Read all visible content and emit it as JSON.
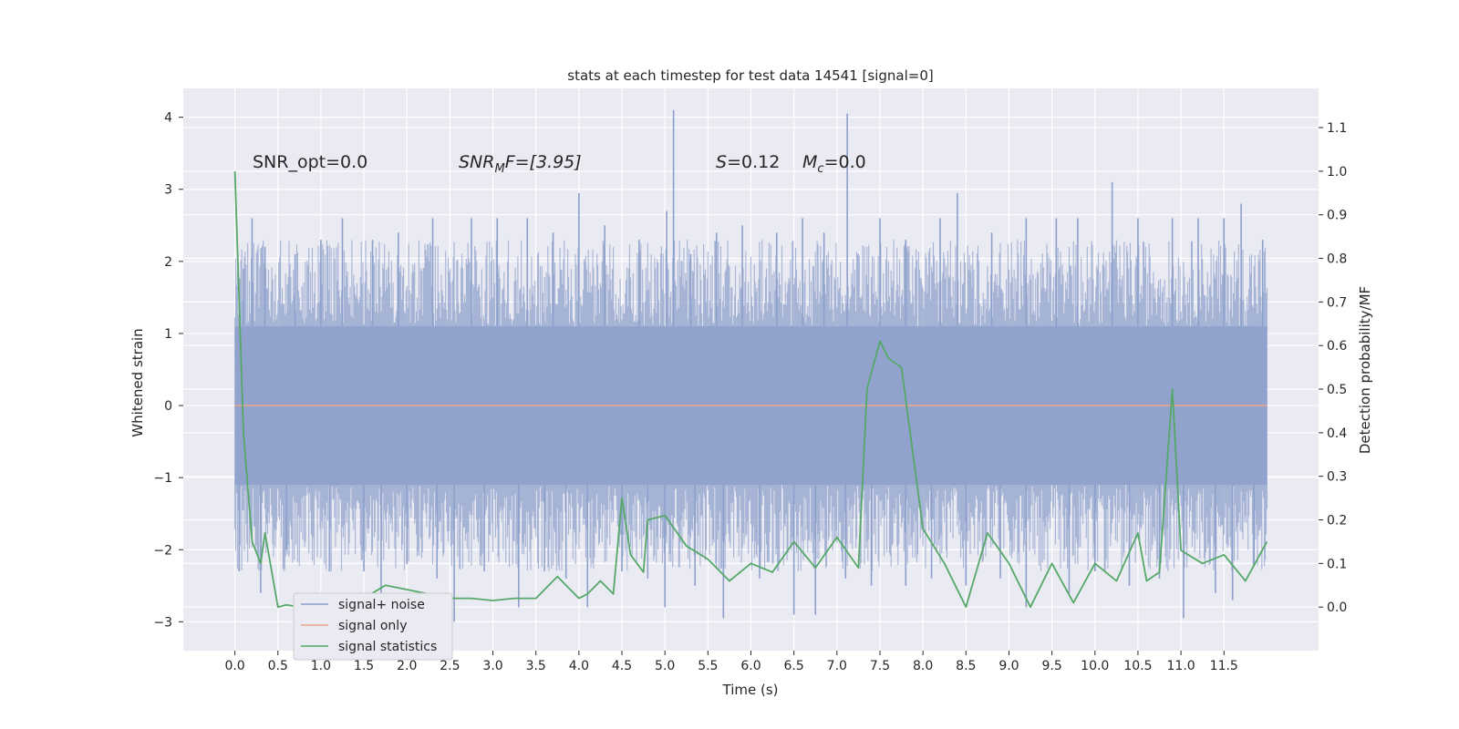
{
  "chart_data": {
    "type": "line",
    "title": "stats at each timestep for test data 14541 [signal=0]",
    "xlabel": "Time (s)",
    "ylabel": "Whitened strain",
    "ylabel_right": "Detection probability/MF",
    "xlim": [
      -0.6,
      12.6
    ],
    "ylim": [
      -3.4,
      4.4
    ],
    "ylim_right": [
      -0.1,
      1.19
    ],
    "x_ticks": [
      "0.0",
      "0.5",
      "1.0",
      "1.5",
      "2.0",
      "2.5",
      "3.0",
      "3.5",
      "4.0",
      "4.5",
      "5.0",
      "5.5",
      "6.0",
      "6.5",
      "7.0",
      "7.5",
      "8.0",
      "8.5",
      "9.0",
      "9.5",
      "10.0",
      "10.5",
      "11.0",
      "11.5"
    ],
    "y_ticks_left": [
      "−3",
      "−2",
      "−1",
      "0",
      "1",
      "2",
      "3",
      "4"
    ],
    "y_ticks_right": [
      "0.0",
      "0.1",
      "0.2",
      "0.3",
      "0.4",
      "0.5",
      "0.6",
      "0.7",
      "0.8",
      "0.9",
      "1.0",
      "1.1"
    ],
    "grid": true,
    "legend_position": "lower-left",
    "annotations": {
      "snr_opt": "SNR_opt=0.0",
      "snr_mf_main": "SNR",
      "snr_mf_sub": "M",
      "snr_mf_tail": "F=[3.95]",
      "s_symbol": "S",
      "s_value": "=0.12",
      "mc_symbol": "M",
      "mc_sub": "c",
      "mc_value": "=0.0"
    },
    "series": [
      {
        "name": "signal+ noise",
        "color": "#8da0cb",
        "axis": "left",
        "x_range": [
          0.0,
          12.0
        ],
        "envelope_upper": 1.1,
        "envelope_lower": -1.1,
        "spikes": [
          {
            "x": 0.1,
            "y": 1.9
          },
          {
            "x": 0.2,
            "y": 2.6
          },
          {
            "x": 0.35,
            "y": 2.2
          },
          {
            "x": 0.7,
            "y": 2.1
          },
          {
            "x": 1.0,
            "y": 2.3
          },
          {
            "x": 1.25,
            "y": 2.6
          },
          {
            "x": 1.6,
            "y": 2.3
          },
          {
            "x": 1.9,
            "y": 2.4
          },
          {
            "x": 2.3,
            "y": 2.6
          },
          {
            "x": 2.75,
            "y": 2.6
          },
          {
            "x": 3.05,
            "y": 2.6
          },
          {
            "x": 3.4,
            "y": 2.6
          },
          {
            "x": 3.7,
            "y": 2.4
          },
          {
            "x": 4.0,
            "y": 2.95
          },
          {
            "x": 4.3,
            "y": 2.5
          },
          {
            "x": 4.7,
            "y": 2.3
          },
          {
            "x": 5.02,
            "y": 2.7
          },
          {
            "x": 5.1,
            "y": 4.1
          },
          {
            "x": 5.3,
            "y": 2.1
          },
          {
            "x": 5.6,
            "y": 2.4
          },
          {
            "x": 5.9,
            "y": 2.5
          },
          {
            "x": 6.3,
            "y": 2.4
          },
          {
            "x": 6.6,
            "y": 2.6
          },
          {
            "x": 6.85,
            "y": 2.4
          },
          {
            "x": 7.12,
            "y": 4.05
          },
          {
            "x": 7.5,
            "y": 2.6
          },
          {
            "x": 7.8,
            "y": 2.3
          },
          {
            "x": 8.2,
            "y": 2.6
          },
          {
            "x": 8.4,
            "y": 2.95
          },
          {
            "x": 8.8,
            "y": 2.4
          },
          {
            "x": 9.2,
            "y": 2.6
          },
          {
            "x": 9.55,
            "y": 2.6
          },
          {
            "x": 9.8,
            "y": 2.6
          },
          {
            "x": 10.2,
            "y": 3.1
          },
          {
            "x": 10.5,
            "y": 2.6
          },
          {
            "x": 10.9,
            "y": 2.6
          },
          {
            "x": 11.2,
            "y": 2.6
          },
          {
            "x": 11.5,
            "y": 2.6
          },
          {
            "x": 11.7,
            "y": 2.8
          },
          {
            "x": 11.95,
            "y": 2.3
          },
          {
            "x": 0.05,
            "y": -2.3
          },
          {
            "x": 0.3,
            "y": -2.6
          },
          {
            "x": 0.6,
            "y": -2.0
          },
          {
            "x": 1.1,
            "y": -2.3
          },
          {
            "x": 1.5,
            "y": -2.3
          },
          {
            "x": 1.7,
            "y": -2.7
          },
          {
            "x": 2.0,
            "y": -2.2
          },
          {
            "x": 2.35,
            "y": -2.4
          },
          {
            "x": 2.55,
            "y": -3.0
          },
          {
            "x": 2.9,
            "y": -2.3
          },
          {
            "x": 3.3,
            "y": -2.8
          },
          {
            "x": 3.6,
            "y": -2.3
          },
          {
            "x": 3.85,
            "y": -2.4
          },
          {
            "x": 4.1,
            "y": -2.8
          },
          {
            "x": 4.5,
            "y": -2.3
          },
          {
            "x": 4.8,
            "y": -2.4
          },
          {
            "x": 5.0,
            "y": -2.8
          },
          {
            "x": 5.35,
            "y": -2.5
          },
          {
            "x": 5.68,
            "y": -2.95
          },
          {
            "x": 6.1,
            "y": -2.4
          },
          {
            "x": 6.5,
            "y": -2.9
          },
          {
            "x": 6.75,
            "y": -2.9
          },
          {
            "x": 7.1,
            "y": -2.4
          },
          {
            "x": 7.4,
            "y": -2.5
          },
          {
            "x": 7.8,
            "y": -2.5
          },
          {
            "x": 8.1,
            "y": -2.4
          },
          {
            "x": 8.5,
            "y": -2.5
          },
          {
            "x": 8.9,
            "y": -2.4
          },
          {
            "x": 9.2,
            "y": -2.8
          },
          {
            "x": 9.7,
            "y": -2.6
          },
          {
            "x": 10.0,
            "y": -2.3
          },
          {
            "x": 10.4,
            "y": -2.5
          },
          {
            "x": 10.75,
            "y": -2.4
          },
          {
            "x": 11.03,
            "y": -2.95
          },
          {
            "x": 11.4,
            "y": -2.6
          },
          {
            "x": 11.6,
            "y": -2.7
          },
          {
            "x": 11.85,
            "y": -2.2
          }
        ]
      },
      {
        "name": "signal only",
        "color": "#e8a68a",
        "axis": "left",
        "x": [
          0.0,
          12.0
        ],
        "y": [
          0.0,
          0.0
        ]
      },
      {
        "name": "signal statistics",
        "color": "#55a868",
        "axis": "right",
        "x": [
          0.0,
          0.1,
          0.2,
          0.3,
          0.35,
          0.5,
          0.6,
          0.75,
          0.9,
          1.0,
          1.25,
          1.5,
          1.75,
          2.0,
          2.25,
          2.5,
          2.75,
          3.0,
          3.25,
          3.5,
          3.75,
          3.9,
          4.0,
          4.1,
          4.25,
          4.4,
          4.5,
          4.6,
          4.75,
          4.8,
          5.0,
          5.25,
          5.5,
          5.75,
          6.0,
          6.25,
          6.5,
          6.75,
          7.0,
          7.25,
          7.35,
          7.5,
          7.6,
          7.75,
          8.0,
          8.25,
          8.5,
          8.75,
          9.0,
          9.25,
          9.5,
          9.75,
          10.0,
          10.25,
          10.5,
          10.6,
          10.75,
          10.9,
          11.0,
          11.25,
          11.5,
          11.75,
          12.0
        ],
        "y": [
          1.0,
          0.4,
          0.15,
          0.1,
          0.17,
          0.0,
          0.005,
          0.0,
          0.0,
          0.0,
          0.005,
          0.02,
          0.05,
          0.04,
          0.03,
          0.02,
          0.02,
          0.015,
          0.02,
          0.02,
          0.07,
          0.04,
          0.02,
          0.03,
          0.06,
          0.03,
          0.25,
          0.12,
          0.08,
          0.2,
          0.21,
          0.14,
          0.11,
          0.06,
          0.1,
          0.08,
          0.15,
          0.09,
          0.16,
          0.09,
          0.5,
          0.61,
          0.57,
          0.55,
          0.18,
          0.1,
          0.0,
          0.17,
          0.1,
          0.0,
          0.1,
          0.01,
          0.1,
          0.06,
          0.17,
          0.06,
          0.08,
          0.5,
          0.13,
          0.1,
          0.12,
          0.06,
          0.15
        ]
      }
    ]
  }
}
